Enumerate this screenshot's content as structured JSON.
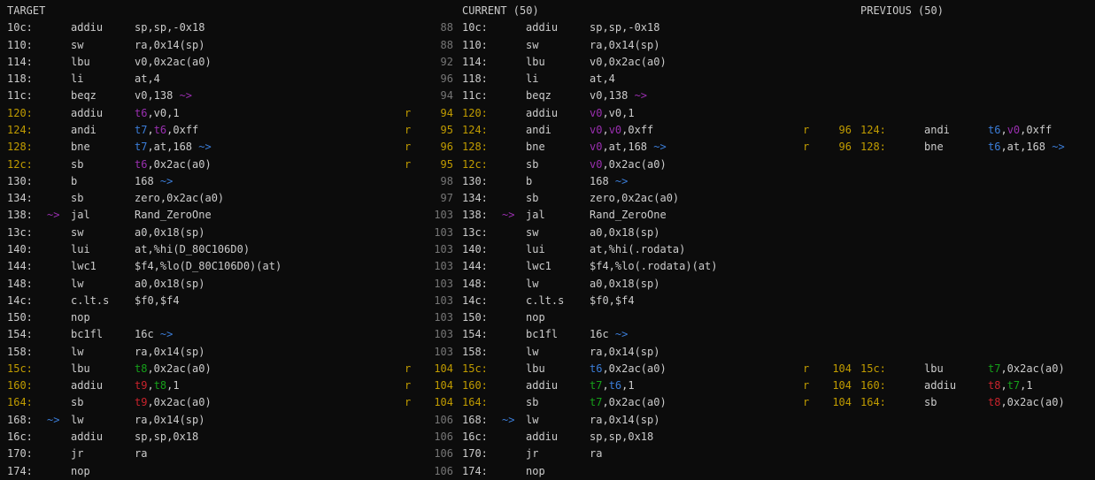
{
  "colors": {
    "background": "#0c0c0c",
    "foreground": "#cccccc",
    "line_number_gray": "#767676",
    "changed_yellow": "#c19c00",
    "reg_red": "#c8232c",
    "reg_green": "#16a01a",
    "reg_blue": "#3b7dd8",
    "reg_magenta": "#9a2fb0"
  },
  "panes": [
    {
      "id": "target",
      "header": "TARGET",
      "rows": [
        {
          "addr": "10c:",
          "mnem": "addiu",
          "ops": [
            [
              "sp,sp,-0x18",
              "fg"
            ]
          ]
        },
        {
          "addr": "110:",
          "mnem": "sw",
          "ops": [
            [
              "ra,0x14(sp)",
              "fg"
            ]
          ]
        },
        {
          "addr": "114:",
          "mnem": "lbu",
          "ops": [
            [
              "v0,0x2ac(a0)",
              "fg"
            ]
          ]
        },
        {
          "addr": "118:",
          "mnem": "li",
          "ops": [
            [
              "at,4",
              "fg"
            ]
          ]
        },
        {
          "addr": "11c:",
          "mnem": "beqz",
          "ops": [
            [
              "v0,138",
              "fg"
            ],
            [
              " ~>",
              "magenta"
            ]
          ]
        },
        {
          "addr": "120:",
          "addr_c": "yellow",
          "mnem": "addiu",
          "ops": [
            [
              "t6",
              "magenta"
            ],
            [
              ",v0,1",
              "fg"
            ]
          ]
        },
        {
          "addr": "124:",
          "addr_c": "yellow",
          "mnem": "andi",
          "ops": [
            [
              "t7",
              "blue"
            ],
            [
              ",",
              "fg"
            ],
            [
              "t6",
              "magenta"
            ],
            [
              ",0xff",
              "fg"
            ]
          ]
        },
        {
          "addr": "128:",
          "addr_c": "yellow",
          "mnem": "bne",
          "ops": [
            [
              "t7",
              "blue"
            ],
            [
              ",at,168",
              "fg"
            ],
            [
              " ~>",
              "blue"
            ]
          ]
        },
        {
          "addr": "12c:",
          "addr_c": "yellow",
          "mnem": "sb",
          "ops": [
            [
              "t6",
              "magenta"
            ],
            [
              ",0x2ac(a0)",
              "fg"
            ]
          ]
        },
        {
          "addr": "130:",
          "mnem": "b",
          "ops": [
            [
              "168",
              "fg"
            ],
            [
              " ~>",
              "blue"
            ]
          ]
        },
        {
          "addr": "134:",
          "mnem": "sb",
          "ops": [
            [
              "zero,0x2ac(a0)",
              "fg"
            ]
          ]
        },
        {
          "addr": "138:",
          "arrow": [
            "~>",
            "magenta"
          ],
          "mnem": "jal",
          "ops": [
            [
              "Rand_ZeroOne",
              "fg"
            ]
          ]
        },
        {
          "addr": "13c:",
          "mnem": "sw",
          "ops": [
            [
              "a0,0x18(sp)",
              "fg"
            ]
          ]
        },
        {
          "addr": "140:",
          "mnem": "lui",
          "ops": [
            [
              "at,%hi(D_80C106D0)",
              "fg"
            ]
          ]
        },
        {
          "addr": "144:",
          "mnem": "lwc1",
          "ops": [
            [
              "$f4,%lo(D_80C106D0)(at)",
              "fg"
            ]
          ]
        },
        {
          "addr": "148:",
          "mnem": "lw",
          "ops": [
            [
              "a0,0x18(sp)",
              "fg"
            ]
          ]
        },
        {
          "addr": "14c:",
          "mnem": "c.lt.s",
          "ops": [
            [
              "$f0,$f4",
              "fg"
            ]
          ]
        },
        {
          "addr": "150:",
          "mnem": "nop",
          "ops": []
        },
        {
          "addr": "154:",
          "mnem": "bc1fl",
          "ops": [
            [
              "16c",
              "fg"
            ],
            [
              " ~>",
              "blue"
            ]
          ]
        },
        {
          "addr": "158:",
          "mnem": "lw",
          "ops": [
            [
              "ra,0x14(sp)",
              "fg"
            ]
          ]
        },
        {
          "addr": "15c:",
          "addr_c": "yellow",
          "mnem": "lbu",
          "ops": [
            [
              "t8",
              "green"
            ],
            [
              ",0x2ac(a0)",
              "fg"
            ]
          ]
        },
        {
          "addr": "160:",
          "addr_c": "yellow",
          "mnem": "addiu",
          "ops": [
            [
              "t9",
              "red"
            ],
            [
              ",",
              "fg"
            ],
            [
              "t8",
              "green"
            ],
            [
              ",1",
              "fg"
            ]
          ]
        },
        {
          "addr": "164:",
          "addr_c": "yellow",
          "mnem": "sb",
          "ops": [
            [
              "t9",
              "red"
            ],
            [
              ",0x2ac(a0)",
              "fg"
            ]
          ]
        },
        {
          "addr": "168:",
          "arrow": [
            "~>",
            "blue"
          ],
          "mnem": "lw",
          "ops": [
            [
              "ra,0x14(sp)",
              "fg"
            ]
          ]
        },
        {
          "addr": "16c:",
          "mnem": "addiu",
          "ops": [
            [
              "sp,sp,0x18",
              "fg"
            ]
          ]
        },
        {
          "addr": "170:",
          "mnem": "jr",
          "ops": [
            [
              "ra",
              "fg"
            ]
          ]
        },
        {
          "addr": "174:",
          "mnem": "nop",
          "ops": []
        }
      ]
    },
    {
      "id": "current",
      "header": "CURRENT (50)",
      "rows": [
        {
          "line": "88",
          "addr": "10c:",
          "mnem": "addiu",
          "ops": [
            [
              "sp,sp,-0x18",
              "fg"
            ]
          ]
        },
        {
          "line": "88",
          "addr": "110:",
          "mnem": "sw",
          "ops": [
            [
              "ra,0x14(sp)",
              "fg"
            ]
          ]
        },
        {
          "line": "92",
          "addr": "114:",
          "mnem": "lbu",
          "ops": [
            [
              "v0,0x2ac(a0)",
              "fg"
            ]
          ]
        },
        {
          "line": "96",
          "addr": "118:",
          "mnem": "li",
          "ops": [
            [
              "at,4",
              "fg"
            ]
          ]
        },
        {
          "line": "94",
          "addr": "11c:",
          "mnem": "beqz",
          "ops": [
            [
              "v0,138",
              "fg"
            ],
            [
              " ~>",
              "magenta"
            ]
          ]
        },
        {
          "flag": "r",
          "line": "94",
          "line_c": "yellow",
          "addr": "120:",
          "addr_c": "yellow",
          "mnem": "addiu",
          "ops": [
            [
              "v0",
              "magenta"
            ],
            [
              ",v0,1",
              "fg"
            ]
          ]
        },
        {
          "flag": "r",
          "line": "95",
          "line_c": "yellow",
          "addr": "124:",
          "addr_c": "yellow",
          "mnem": "andi",
          "ops": [
            [
              "v0",
              "magenta"
            ],
            [
              ",",
              "fg"
            ],
            [
              "v0",
              "magenta"
            ],
            [
              ",0xff",
              "fg"
            ]
          ]
        },
        {
          "flag": "r",
          "line": "96",
          "line_c": "yellow",
          "addr": "128:",
          "addr_c": "yellow",
          "mnem": "bne",
          "ops": [
            [
              "v0",
              "magenta"
            ],
            [
              ",at,168",
              "fg"
            ],
            [
              " ~>",
              "blue"
            ]
          ]
        },
        {
          "flag": "r",
          "line": "95",
          "line_c": "yellow",
          "addr": "12c:",
          "addr_c": "yellow",
          "mnem": "sb",
          "ops": [
            [
              "v0",
              "magenta"
            ],
            [
              ",0x2ac(a0)",
              "fg"
            ]
          ]
        },
        {
          "line": "98",
          "addr": "130:",
          "mnem": "b",
          "ops": [
            [
              "168",
              "fg"
            ],
            [
              " ~>",
              "blue"
            ]
          ]
        },
        {
          "line": "97",
          "addr": "134:",
          "mnem": "sb",
          "ops": [
            [
              "zero,0x2ac(a0)",
              "fg"
            ]
          ]
        },
        {
          "line": "103",
          "addr": "138:",
          "arrow": [
            "~>",
            "magenta"
          ],
          "mnem": "jal",
          "ops": [
            [
              "Rand_ZeroOne",
              "fg"
            ]
          ]
        },
        {
          "line": "103",
          "addr": "13c:",
          "mnem": "sw",
          "ops": [
            [
              "a0,0x18(sp)",
              "fg"
            ]
          ]
        },
        {
          "line": "103",
          "addr": "140:",
          "mnem": "lui",
          "ops": [
            [
              "at,%hi(.rodata)",
              "fg"
            ]
          ]
        },
        {
          "line": "103",
          "addr": "144:",
          "mnem": "lwc1",
          "ops": [
            [
              "$f4,%lo(.rodata)(at)",
              "fg"
            ]
          ]
        },
        {
          "line": "103",
          "addr": "148:",
          "mnem": "lw",
          "ops": [
            [
              "a0,0x18(sp)",
              "fg"
            ]
          ]
        },
        {
          "line": "103",
          "addr": "14c:",
          "mnem": "c.lt.s",
          "ops": [
            [
              "$f0,$f4",
              "fg"
            ]
          ]
        },
        {
          "line": "103",
          "addr": "150:",
          "mnem": "nop",
          "ops": []
        },
        {
          "line": "103",
          "addr": "154:",
          "mnem": "bc1fl",
          "ops": [
            [
              "16c",
              "fg"
            ],
            [
              " ~>",
              "blue"
            ]
          ]
        },
        {
          "line": "103",
          "addr": "158:",
          "mnem": "lw",
          "ops": [
            [
              "ra,0x14(sp)",
              "fg"
            ]
          ]
        },
        {
          "flag": "r",
          "line": "104",
          "line_c": "yellow",
          "addr": "15c:",
          "addr_c": "yellow",
          "mnem": "lbu",
          "ops": [
            [
              "t6",
              "blue"
            ],
            [
              ",0x2ac(a0)",
              "fg"
            ]
          ]
        },
        {
          "flag": "r",
          "line": "104",
          "line_c": "yellow",
          "addr": "160:",
          "addr_c": "yellow",
          "mnem": "addiu",
          "ops": [
            [
              "t7",
              "green"
            ],
            [
              ",",
              "fg"
            ],
            [
              "t6",
              "blue"
            ],
            [
              ",1",
              "fg"
            ]
          ]
        },
        {
          "flag": "r",
          "line": "104",
          "line_c": "yellow",
          "addr": "164:",
          "addr_c": "yellow",
          "mnem": "sb",
          "ops": [
            [
              "t7",
              "green"
            ],
            [
              ",0x2ac(a0)",
              "fg"
            ]
          ]
        },
        {
          "line": "106",
          "addr": "168:",
          "arrow": [
            "~>",
            "blue"
          ],
          "mnem": "lw",
          "ops": [
            [
              "ra,0x14(sp)",
              "fg"
            ]
          ]
        },
        {
          "line": "106",
          "addr": "16c:",
          "mnem": "addiu",
          "ops": [
            [
              "sp,sp,0x18",
              "fg"
            ]
          ]
        },
        {
          "line": "106",
          "addr": "170:",
          "mnem": "jr",
          "ops": [
            [
              "ra",
              "fg"
            ]
          ]
        },
        {
          "line": "106",
          "addr": "174:",
          "mnem": "nop",
          "ops": []
        }
      ]
    },
    {
      "id": "previous",
      "header": "PREVIOUS (50)",
      "rows": [
        null,
        null,
        null,
        null,
        null,
        null,
        {
          "flag": "r",
          "line": "96",
          "line_c": "yellow",
          "addr": "124:",
          "addr_c": "yellow",
          "mnem": "andi",
          "ops": [
            [
              "t6",
              "blue"
            ],
            [
              ",",
              "fg"
            ],
            [
              "v0",
              "magenta"
            ],
            [
              ",0xff",
              "fg"
            ]
          ]
        },
        {
          "flag": "r",
          "line": "96",
          "line_c": "yellow",
          "addr": "128:",
          "addr_c": "yellow",
          "mnem": "bne",
          "ops": [
            [
              "t6",
              "blue"
            ],
            [
              ",at,168",
              "fg"
            ],
            [
              " ~>",
              "blue"
            ]
          ]
        },
        null,
        null,
        null,
        null,
        null,
        null,
        null,
        null,
        null,
        null,
        null,
        null,
        {
          "flag": "r",
          "line": "104",
          "line_c": "yellow",
          "addr": "15c:",
          "addr_c": "yellow",
          "mnem": "lbu",
          "ops": [
            [
              "t7",
              "green"
            ],
            [
              ",0x2ac(a0)",
              "fg"
            ]
          ]
        },
        {
          "flag": "r",
          "line": "104",
          "line_c": "yellow",
          "addr": "160:",
          "addr_c": "yellow",
          "mnem": "addiu",
          "ops": [
            [
              "t8",
              "red"
            ],
            [
              ",",
              "fg"
            ],
            [
              "t7",
              "green"
            ],
            [
              ",1",
              "fg"
            ]
          ]
        },
        {
          "flag": "r",
          "line": "104",
          "line_c": "yellow",
          "addr": "164:",
          "addr_c": "yellow",
          "mnem": "sb",
          "ops": [
            [
              "t8",
              "red"
            ],
            [
              ",0x2ac(a0)",
              "fg"
            ]
          ]
        },
        null,
        null,
        null,
        null
      ]
    }
  ]
}
